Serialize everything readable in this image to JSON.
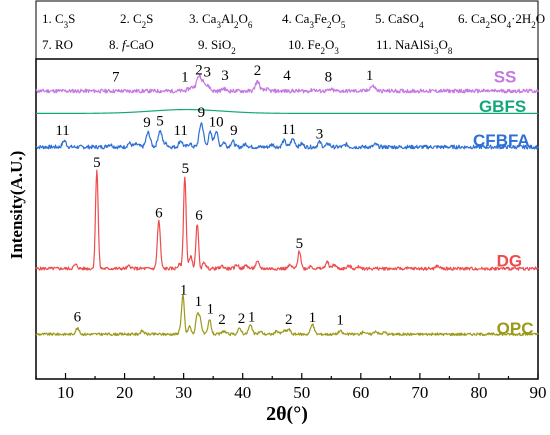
{
  "chart_data": {
    "type": "line",
    "xlabel": "2θ(°)",
    "ylabel": "Intensity(A.U.)",
    "xlim": [
      5,
      90
    ],
    "xticks": [
      "10",
      "20",
      "30",
      "40",
      "50",
      "60",
      "70",
      "80",
      "90"
    ],
    "legend": {
      "placement": "top",
      "items": [
        {
          "label": "1. C3S",
          "parts": [
            {
              "t": "1. C"
            },
            {
              "t": "3",
              "sub": true
            },
            {
              "t": "S"
            }
          ]
        },
        {
          "label": "2. C2S",
          "parts": [
            {
              "t": "2. C"
            },
            {
              "t": "2",
              "sub": true
            },
            {
              "t": "S"
            }
          ]
        },
        {
          "label": "3. Ca3Al2O6",
          "parts": [
            {
              "t": "3. Ca"
            },
            {
              "t": "3",
              "sub": true
            },
            {
              "t": "Al"
            },
            {
              "t": "2",
              "sub": true
            },
            {
              "t": "O"
            },
            {
              "t": "6",
              "sub": true
            }
          ]
        },
        {
          "label": "4. Ca3Fe2O5",
          "parts": [
            {
              "t": "4. Ca"
            },
            {
              "t": "3",
              "sub": true
            },
            {
              "t": "Fe"
            },
            {
              "t": "2",
              "sub": true
            },
            {
              "t": "O"
            },
            {
              "t": "5",
              "sub": true
            }
          ]
        },
        {
          "label": "5. CaSO4",
          "parts": [
            {
              "t": "5. CaSO"
            },
            {
              "t": "4",
              "sub": true
            }
          ]
        },
        {
          "label": "6. Ca2SO4·2H2O",
          "parts": [
            {
              "t": "6. Ca"
            },
            {
              "t": "2",
              "sub": true
            },
            {
              "t": "SO"
            },
            {
              "t": "4",
              "sub": true
            },
            {
              "t": "·2H"
            },
            {
              "t": "2",
              "sub": true
            },
            {
              "t": "O"
            }
          ]
        },
        {
          "label": "7. RO",
          "parts": [
            {
              "t": "7. RO"
            }
          ]
        },
        {
          "label": "8. f-CaO",
          "parts": [
            {
              "t": "8. "
            },
            {
              "t": "f",
              "italic": true
            },
            {
              "t": "-CaO"
            }
          ]
        },
        {
          "label": "9. SiO2",
          "parts": [
            {
              "t": "9. SiO"
            },
            {
              "t": "2",
              "sub": true
            }
          ]
        },
        {
          "label": "10. Fe2O3",
          "parts": [
            {
              "t": "10. Fe"
            },
            {
              "t": "2",
              "sub": true
            },
            {
              "t": "O"
            },
            {
              "t": "3",
              "sub": true
            }
          ]
        },
        {
          "label": "11. NaAlSi3O8",
          "parts": [
            {
              "t": "11. NaAlSi"
            },
            {
              "t": "3",
              "sub": true
            },
            {
              "t": "O"
            },
            {
              "t": "8",
              "sub": true
            }
          ]
        }
      ]
    },
    "series": [
      {
        "name": "SS",
        "color": "#c478e0",
        "baseline": 0.9,
        "noise": 0.006,
        "seed": 11,
        "peaks": [
          [
            31.5,
            0.012,
            0.6
          ],
          [
            32.6,
            0.045,
            0.35
          ],
          [
            33.4,
            0.03,
            0.3
          ],
          [
            34.2,
            0.015,
            0.3
          ],
          [
            36.8,
            0.008,
            0.3
          ],
          [
            42.5,
            0.03,
            0.35
          ],
          [
            44.0,
            0.006,
            0.3
          ],
          [
            52.0,
            0.005,
            0.3
          ],
          [
            55.0,
            0.004,
            0.3
          ],
          [
            61.8,
            0.012,
            0.35
          ],
          [
            62.3,
            0.008,
            0.3
          ]
        ],
        "labels": [
          {
            "text": "7",
            "x": 18.5,
            "y": 0.93
          },
          {
            "text": "1",
            "x": 30.2,
            "y": 0.93
          },
          {
            "text": "2",
            "x": 32.6,
            "y": 0.952
          },
          {
            "text": "3",
            "x": 34.0,
            "y": 0.945
          },
          {
            "text": "3",
            "x": 37.0,
            "y": 0.935
          },
          {
            "text": "2",
            "x": 42.5,
            "y": 0.95
          },
          {
            "text": "4",
            "x": 47.5,
            "y": 0.935
          },
          {
            "text": "8",
            "x": 54.5,
            "y": 0.93
          },
          {
            "text": "1",
            "x": 61.5,
            "y": 0.935
          }
        ],
        "name_pos": [
          82.5,
          0.927
        ]
      },
      {
        "name": "GBFS",
        "color": "#13a87a",
        "baseline": 0.83,
        "noise": 0.0,
        "seed": 3,
        "peaks": [
          [
            30.5,
            0.012,
            6.0
          ]
        ],
        "labels": [],
        "name_pos": [
          80.0,
          0.835
        ]
      },
      {
        "name": "CFBFA",
        "color": "#2e6fd6",
        "baseline": 0.725,
        "noise": 0.006,
        "seed": 7,
        "peaks": [
          [
            9.8,
            0.02,
            0.3
          ],
          [
            17.5,
            0.008,
            0.4
          ],
          [
            20.8,
            0.012,
            0.3
          ],
          [
            22.0,
            0.008,
            0.4
          ],
          [
            24.0,
            0.045,
            0.35
          ],
          [
            26.0,
            0.05,
            0.35
          ],
          [
            27.0,
            0.01,
            0.3
          ],
          [
            29.5,
            0.02,
            0.3
          ],
          [
            31.0,
            0.01,
            0.3
          ],
          [
            33.0,
            0.075,
            0.35
          ],
          [
            34.5,
            0.045,
            0.3
          ],
          [
            35.5,
            0.05,
            0.3
          ],
          [
            36.8,
            0.015,
            0.3
          ],
          [
            38.3,
            0.018,
            0.3
          ],
          [
            40.5,
            0.01,
            0.3
          ],
          [
            45.0,
            0.008,
            0.3
          ],
          [
            47.0,
            0.02,
            0.3
          ],
          [
            48.5,
            0.025,
            0.35
          ],
          [
            50.0,
            0.01,
            0.3
          ],
          [
            53.0,
            0.015,
            0.3
          ],
          [
            54.5,
            0.01,
            0.3
          ],
          [
            57.5,
            0.008,
            0.3
          ],
          [
            62.5,
            0.008,
            0.3
          ]
        ],
        "labels": [
          {
            "text": "11",
            "x": 9.5,
            "y": 0.762
          },
          {
            "text": "9",
            "x": 23.8,
            "y": 0.787
          },
          {
            "text": "5",
            "x": 26.0,
            "y": 0.792
          },
          {
            "text": "11",
            "x": 29.5,
            "y": 0.762
          },
          {
            "text": "9",
            "x": 33.0,
            "y": 0.818
          },
          {
            "text": "10",
            "x": 35.5,
            "y": 0.789
          },
          {
            "text": "9",
            "x": 38.5,
            "y": 0.762
          },
          {
            "text": "11",
            "x": 47.8,
            "y": 0.765
          },
          {
            "text": "3",
            "x": 53.0,
            "y": 0.752
          }
        ],
        "name_pos": [
          79.0,
          0.728
        ]
      },
      {
        "name": "DG",
        "color": "#ee4c4c",
        "baseline": 0.345,
        "noise": 0.005,
        "seed": 5,
        "peaks": [
          [
            11.7,
            0.012,
            0.3
          ],
          [
            15.3,
            0.31,
            0.22
          ],
          [
            20.8,
            0.008,
            0.3
          ],
          [
            25.8,
            0.15,
            0.25
          ],
          [
            29.3,
            0.012,
            0.3
          ],
          [
            30.2,
            0.29,
            0.22
          ],
          [
            31.2,
            0.04,
            0.25
          ],
          [
            32.3,
            0.14,
            0.22
          ],
          [
            33.5,
            0.02,
            0.25
          ],
          [
            36.5,
            0.008,
            0.3
          ],
          [
            39.0,
            0.012,
            0.3
          ],
          [
            40.6,
            0.01,
            0.3
          ],
          [
            42.5,
            0.02,
            0.3
          ],
          [
            48.0,
            0.01,
            0.3
          ],
          [
            49.6,
            0.055,
            0.25
          ],
          [
            51.5,
            0.008,
            0.3
          ],
          [
            54.3,
            0.02,
            0.3
          ],
          [
            55.5,
            0.012,
            0.3
          ],
          [
            58.0,
            0.008,
            0.3
          ],
          [
            59.8,
            0.006,
            0.3
          ],
          [
            73.0,
            0.008,
            0.3
          ]
        ],
        "labels": [
          {
            "text": "5",
            "x": 15.3,
            "y": 0.663
          },
          {
            "text": "6",
            "x": 25.8,
            "y": 0.505
          },
          {
            "text": "5",
            "x": 30.3,
            "y": 0.643
          },
          {
            "text": "6",
            "x": 32.6,
            "y": 0.497
          },
          {
            "text": "5",
            "x": 49.6,
            "y": 0.41
          }
        ],
        "name_pos": [
          83.0,
          0.352
        ]
      },
      {
        "name": "OPC",
        "color": "#9b9a18",
        "baseline": 0.14,
        "noise": 0.004,
        "seed": 9,
        "peaks": [
          [
            12.0,
            0.018,
            0.3
          ],
          [
            23.0,
            0.01,
            0.3
          ],
          [
            29.5,
            0.02,
            0.25
          ],
          [
            29.9,
            0.115,
            0.22
          ],
          [
            31.0,
            0.025,
            0.25
          ],
          [
            32.3,
            0.06,
            0.25
          ],
          [
            32.8,
            0.045,
            0.25
          ],
          [
            34.4,
            0.045,
            0.25
          ],
          [
            36.8,
            0.01,
            0.3
          ],
          [
            39.5,
            0.018,
            0.3
          ],
          [
            41.3,
            0.028,
            0.3
          ],
          [
            43.0,
            0.008,
            0.3
          ],
          [
            45.8,
            0.01,
            0.3
          ],
          [
            47.0,
            0.01,
            0.3
          ],
          [
            47.8,
            0.015,
            0.3
          ],
          [
            51.8,
            0.03,
            0.3
          ],
          [
            56.5,
            0.01,
            0.3
          ],
          [
            60.5,
            0.008,
            0.3
          ],
          [
            62.5,
            0.01,
            0.3
          ],
          [
            64.0,
            0.006,
            0.3
          ]
        ],
        "labels": [
          {
            "text": "6",
            "x": 12.0,
            "y": 0.18
          },
          {
            "text": "1",
            "x": 30.0,
            "y": 0.264
          },
          {
            "text": "1",
            "x": 32.5,
            "y": 0.228
          },
          {
            "text": "1",
            "x": 34.5,
            "y": 0.205
          },
          {
            "text": "2",
            "x": 36.5,
            "y": 0.172
          },
          {
            "text": "2",
            "x": 39.8,
            "y": 0.175
          },
          {
            "text": "1",
            "x": 41.5,
            "y": 0.18
          },
          {
            "text": "2",
            "x": 47.8,
            "y": 0.172
          },
          {
            "text": "1",
            "x": 51.8,
            "y": 0.178
          },
          {
            "text": "1",
            "x": 56.5,
            "y": 0.17
          }
        ],
        "name_pos": [
          83.0,
          0.14
        ]
      }
    ]
  }
}
